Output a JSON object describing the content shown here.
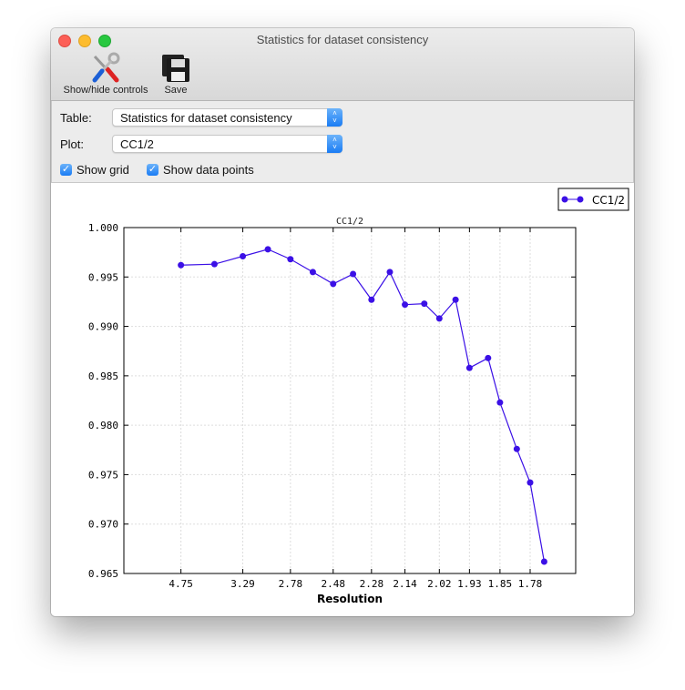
{
  "window": {
    "title": "Statistics for dataset consistency",
    "traffic_lights": {
      "close": "#fc5f57",
      "minimize": "#fdbc2e",
      "zoom": "#28c840"
    }
  },
  "toolbar": {
    "show_hide_label": "Show/hide controls",
    "show_hide_icon": "tools-icon",
    "save_label": "Save",
    "save_icon": "floppy-disk-icon"
  },
  "controls": {
    "table_label": "Table:",
    "table_value": "Statistics for dataset consistency",
    "plot_label": "Plot:",
    "plot_value": "CC1/2",
    "show_grid_label": "Show grid",
    "show_grid_checked": true,
    "show_points_label": "Show data points",
    "show_points_checked": true
  },
  "chart_data": {
    "type": "line",
    "title": "CC1/2",
    "xlabel": "Resolution",
    "ylabel": "",
    "x_scale": "reciprocal-square (1/d^2)",
    "ylim": [
      0.965,
      1.0
    ],
    "yticks": [
      "1.000",
      "0.995",
      "0.990",
      "0.985",
      "0.980",
      "0.975",
      "0.970",
      "0.965"
    ],
    "xticks": [
      "4.75",
      "3.29",
      "2.78",
      "2.48",
      "2.28",
      "2.14",
      "2.02",
      "1.93",
      "1.85",
      "1.78"
    ],
    "grid": true,
    "legend": "top-right",
    "series": [
      {
        "name": "CC1/2",
        "color": "#3b10e6",
        "x": [
          4.75,
          3.77,
          3.29,
          2.99,
          2.78,
          2.61,
          2.48,
          2.37,
          2.28,
          2.2,
          2.14,
          2.07,
          2.02,
          1.97,
          1.93,
          1.88,
          1.85,
          1.81,
          1.78,
          1.75
        ],
        "y": [
          0.9962,
          0.9963,
          0.9971,
          0.9978,
          0.9968,
          0.9955,
          0.9943,
          0.9953,
          0.9927,
          0.9955,
          0.9922,
          0.9923,
          0.9908,
          0.9927,
          0.9858,
          0.9868,
          0.9823,
          0.9776,
          0.9742,
          0.9662
        ]
      }
    ]
  }
}
